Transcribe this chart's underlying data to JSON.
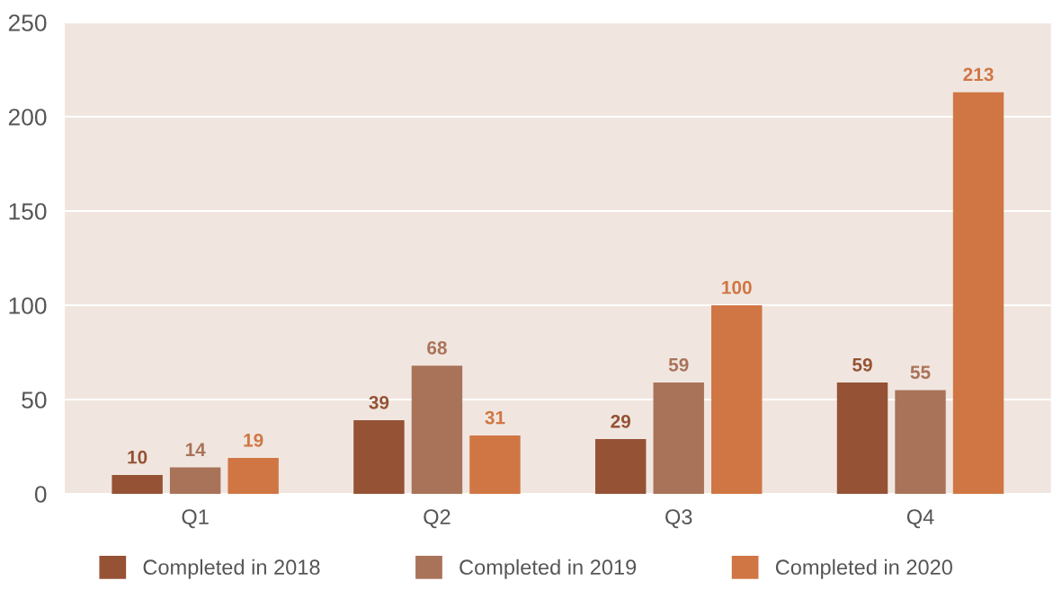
{
  "chart_data": {
    "type": "bar",
    "categories": [
      "Q1",
      "Q2",
      "Q3",
      "Q4"
    ],
    "series": [
      {
        "name": "Completed in 2018",
        "color": "#955235",
        "values": [
          10,
          39,
          29,
          59
        ]
      },
      {
        "name": "Completed in 2019",
        "color": "#a9735a",
        "values": [
          14,
          68,
          59,
          55
        ]
      },
      {
        "name": "Completed in 2020",
        "color": "#d07644",
        "values": [
          19,
          31,
          100,
          213
        ]
      }
    ],
    "ylim": [
      0,
      250
    ],
    "yticks": [
      0,
      50,
      100,
      150,
      200,
      250
    ],
    "grid": "y",
    "legend": "bottom",
    "data_labels": true
  }
}
